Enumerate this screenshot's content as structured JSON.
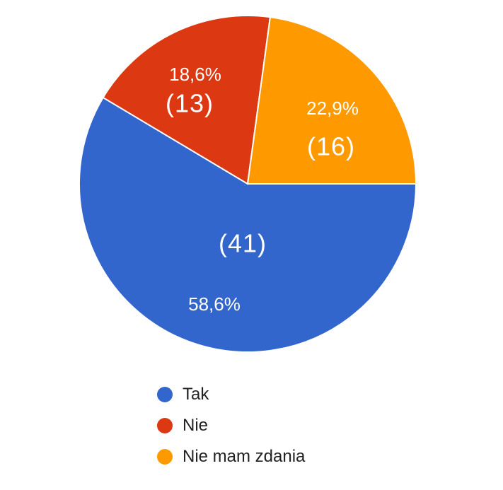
{
  "chart_data": {
    "type": "pie",
    "slices": [
      {
        "label": "Tak",
        "count": 41,
        "percent_label": "58,6%",
        "count_label": "(41)",
        "color": "#3366cc"
      },
      {
        "label": "Nie",
        "count": 13,
        "percent_label": "18,6%",
        "count_label": "(13)",
        "color": "#dc3912"
      },
      {
        "label": "Nie mam zdania",
        "count": 16,
        "percent_label": "22,9%",
        "count_label": "(16)",
        "color": "#ff9900"
      }
    ],
    "legend_position": "bottom"
  },
  "legend": {
    "items": [
      {
        "label": "Tak",
        "color": "#3366cc"
      },
      {
        "label": "Nie",
        "color": "#dc3912"
      },
      {
        "label": "Nie mam zdania",
        "color": "#ff9900"
      }
    ]
  }
}
